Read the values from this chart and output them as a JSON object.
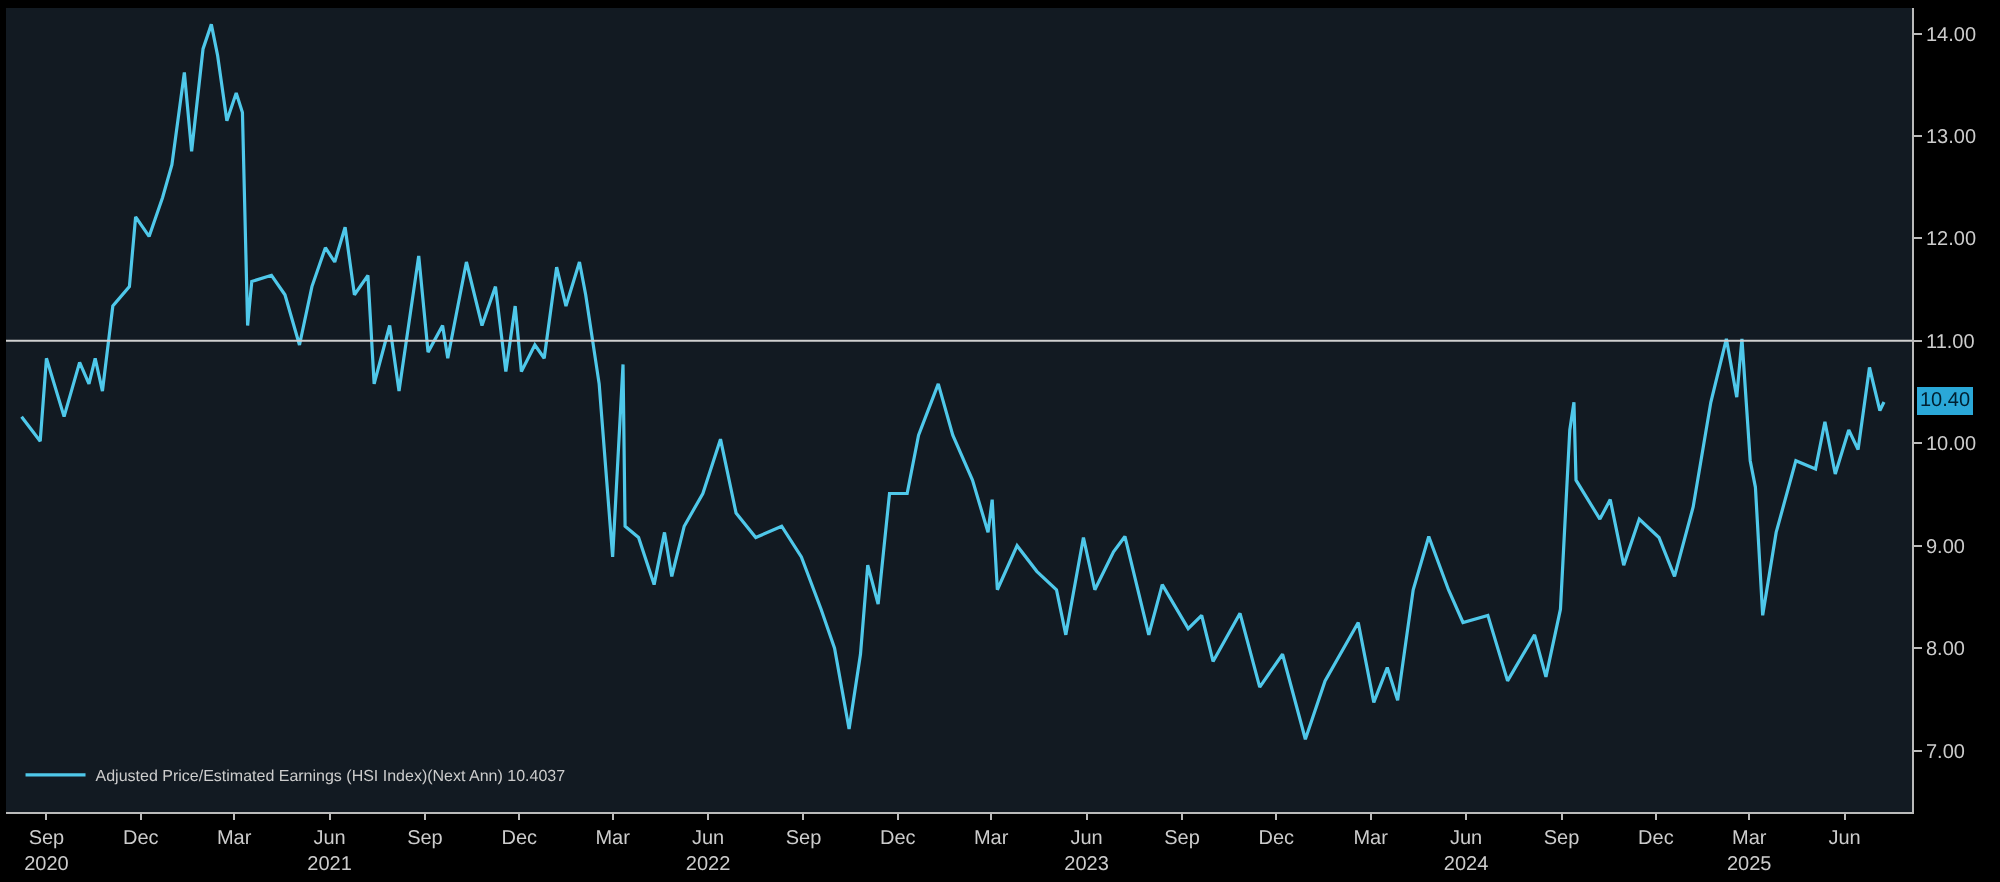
{
  "chart_data": {
    "type": "line",
    "x": [
      "2020-08-22",
      "2020-09-09",
      "2020-09-15",
      "2020-10-02",
      "2020-10-17",
      "2020-10-26",
      "2020-11-01",
      "2020-11-08",
      "2020-11-18",
      "2020-12-04",
      "2020-12-10",
      "2020-12-23",
      "2021-01-05",
      "2021-01-14",
      "2021-01-26",
      "2021-02-02",
      "2021-02-13",
      "2021-02-21",
      "2021-02-27",
      "2021-03-08",
      "2021-03-17",
      "2021-03-23",
      "2021-03-28",
      "2021-04-01",
      "2021-04-20",
      "2021-05-03",
      "2021-05-17",
      "2021-05-29",
      "2021-06-11",
      "2021-06-20",
      "2021-06-30",
      "2021-07-09",
      "2021-07-22",
      "2021-07-28",
      "2021-08-12",
      "2021-08-21",
      "2021-09-09",
      "2021-09-18",
      "2021-10-02",
      "2021-10-07",
      "2021-10-25",
      "2021-11-09",
      "2021-11-22",
      "2021-12-02",
      "2021-12-11",
      "2021-12-17",
      "2021-12-30",
      "2022-01-08",
      "2022-01-20",
      "2022-01-29",
      "2022-02-11",
      "2022-02-17",
      "2022-03-02",
      "2022-03-15",
      "2022-03-25",
      "2022-03-27",
      "2022-04-09",
      "2022-04-24",
      "2022-05-04",
      "2022-05-11",
      "2022-05-23",
      "2022-06-10",
      "2022-06-27",
      "2022-07-12",
      "2022-07-31",
      "2022-08-25",
      "2022-09-13",
      "2022-10-02",
      "2022-10-15",
      "2022-10-29",
      "2022-11-09",
      "2022-11-16",
      "2022-11-26",
      "2022-12-07",
      "2022-12-24",
      "2023-01-04",
      "2023-01-23",
      "2023-02-06",
      "2023-02-25",
      "2023-03-12",
      "2023-03-16",
      "2023-03-21",
      "2023-04-09",
      "2023-04-28",
      "2023-05-17",
      "2023-05-26",
      "2023-06-12",
      "2023-06-23",
      "2023-07-11",
      "2023-07-22",
      "2023-08-14",
      "2023-08-27",
      "2023-09-21",
      "2023-10-04",
      "2023-10-15",
      "2023-11-10",
      "2023-11-29",
      "2023-12-21",
      "2024-01-12",
      "2024-01-31",
      "2024-03-03",
      "2024-03-18",
      "2024-03-31",
      "2024-04-10",
      "2024-04-25",
      "2024-05-10",
      "2024-05-29",
      "2024-06-12",
      "2024-07-06",
      "2024-07-25",
      "2024-08-20",
      "2024-08-31",
      "2024-09-14",
      "2024-09-23",
      "2024-09-27",
      "2024-09-29",
      "2024-10-22",
      "2024-11-01",
      "2024-11-14",
      "2024-11-29",
      "2024-12-18",
      "2025-01-02",
      "2025-01-20",
      "2025-02-06",
      "2025-02-21",
      "2025-03-03",
      "2025-03-08",
      "2025-03-16",
      "2025-03-21",
      "2025-03-28",
      "2025-04-10",
      "2025-04-29",
      "2025-05-18",
      "2025-05-27",
      "2025-06-06",
      "2025-06-19",
      "2025-06-28",
      "2025-07-09",
      "2025-07-19",
      "2025-07-23"
    ],
    "series": [
      {
        "name": "Adjusted Price/Estimated Earnings (HSI Index)(Next Ann) 10.4037",
        "color": "#4fc8ea",
        "values": [
          10.26,
          10.02,
          10.83,
          10.26,
          10.79,
          10.58,
          10.83,
          10.51,
          11.34,
          11.53,
          12.21,
          12.02,
          12.4,
          12.72,
          13.62,
          12.85,
          13.85,
          14.09,
          13.79,
          13.15,
          13.42,
          13.23,
          11.15,
          11.58,
          11.64,
          11.45,
          10.96,
          11.53,
          11.91,
          11.77,
          12.11,
          11.45,
          11.64,
          10.58,
          11.15,
          10.51,
          11.83,
          10.89,
          11.15,
          10.83,
          11.77,
          11.15,
          11.53,
          10.7,
          11.34,
          10.7,
          10.96,
          10.83,
          11.72,
          11.34,
          11.77,
          11.45,
          10.58,
          8.89,
          10.77,
          9.19,
          9.08,
          8.62,
          9.13,
          8.7,
          9.19,
          9.51,
          10.04,
          9.32,
          9.08,
          9.19,
          8.89,
          8.38,
          8.0,
          7.21,
          7.94,
          8.81,
          8.43,
          9.51,
          9.51,
          10.08,
          10.58,
          10.08,
          9.64,
          9.13,
          9.45,
          8.57,
          9.0,
          8.75,
          8.57,
          8.13,
          9.08,
          8.57,
          8.94,
          9.09,
          8.13,
          8.62,
          8.19,
          8.32,
          7.87,
          8.34,
          7.62,
          7.94,
          7.11,
          7.68,
          8.25,
          7.47,
          7.81,
          7.49,
          8.57,
          9.09,
          8.57,
          8.25,
          8.32,
          7.68,
          8.13,
          7.72,
          8.38,
          10.13,
          10.4,
          9.64,
          9.26,
          9.45,
          8.81,
          9.26,
          9.08,
          8.7,
          9.38,
          10.4,
          11.02,
          10.45,
          11.02,
          9.83,
          9.57,
          8.32,
          9.13,
          9.83,
          9.75,
          10.21,
          9.7,
          10.13,
          9.94,
          10.74,
          10.32,
          10.4037
        ]
      }
    ],
    "xlim": [
      "2020-08-07",
      "2025-08-19"
    ],
    "xticks": [
      {
        "value": "2020-09-15",
        "label": "Sep\n2020"
      },
      {
        "value": "2020-12-15",
        "label": "Dec"
      },
      {
        "value": "2021-03-15",
        "label": "Mar"
      },
      {
        "value": "2021-06-15",
        "label": "Jun\n2021"
      },
      {
        "value": "2021-09-15",
        "label": "Sep"
      },
      {
        "value": "2021-12-15",
        "label": "Dec"
      },
      {
        "value": "2022-03-15",
        "label": "Mar"
      },
      {
        "value": "2022-06-15",
        "label": "Jun\n2022"
      },
      {
        "value": "2022-09-15",
        "label": "Sep"
      },
      {
        "value": "2022-12-15",
        "label": "Dec"
      },
      {
        "value": "2023-03-15",
        "label": "Mar"
      },
      {
        "value": "2023-06-15",
        "label": "Jun\n2023"
      },
      {
        "value": "2023-09-15",
        "label": "Sep"
      },
      {
        "value": "2023-12-15",
        "label": "Dec"
      },
      {
        "value": "2024-03-15",
        "label": "Mar"
      },
      {
        "value": "2024-06-15",
        "label": "Jun\n2024"
      },
      {
        "value": "2024-09-15",
        "label": "Sep"
      },
      {
        "value": "2024-12-15",
        "label": "Dec"
      },
      {
        "value": "2025-03-15",
        "label": "Mar\n2025"
      },
      {
        "value": "2025-06-15",
        "label": "Jun"
      }
    ],
    "ylim": [
      6.4,
      14.25
    ],
    "yticks": [
      {
        "value": 7,
        "label": "7.00"
      },
      {
        "value": 8,
        "label": "8.00"
      },
      {
        "value": 9,
        "label": "9.00"
      },
      {
        "value": 10,
        "label": "10.00"
      },
      {
        "value": 11,
        "label": "11.00"
      },
      {
        "value": 12,
        "label": "12.00"
      },
      {
        "value": 13,
        "label": "13.00"
      },
      {
        "value": 14,
        "label": "14.00"
      }
    ],
    "ref_lines": [
      {
        "axis": "y",
        "value": 11,
        "color": "#d0d0d0"
      }
    ],
    "annotations": [
      {
        "text": "10.40",
        "x": "2025-07-23",
        "y": 10.4037
      }
    ],
    "legend": "bottom left",
    "grid": false,
    "line_style": "solid",
    "marker": "none"
  }
}
